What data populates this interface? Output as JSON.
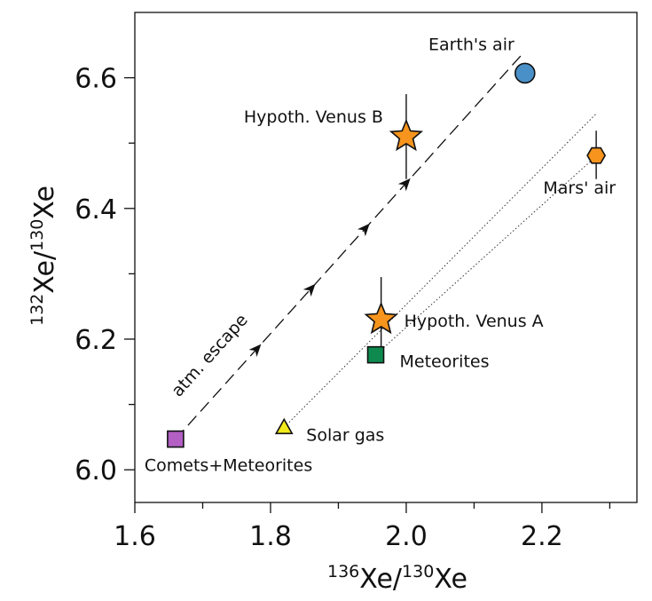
{
  "chart_data": {
    "type": "scatter",
    "xlabel": {
      "sup1": "136",
      "base1": "Xe/",
      "sup2": "130",
      "base2": "Xe"
    },
    "ylabel": {
      "sup1": "132",
      "base1": "Xe/",
      "sup2": "130",
      "base2": "Xe"
    },
    "xlim": [
      1.6,
      2.34
    ],
    "ylim": [
      5.95,
      6.7
    ],
    "x_ticks": [
      1.6,
      1.8,
      2.0,
      2.2
    ],
    "x_tick_labels": [
      "1.6",
      "1.8",
      "2.0",
      "2.2"
    ],
    "x_minor_ticks": [
      1.7,
      1.9,
      2.1,
      2.3
    ],
    "y_ticks": [
      6.0,
      6.2,
      6.4,
      6.6
    ],
    "y_tick_labels": [
      "6.0",
      "6.2",
      "6.4",
      "6.6"
    ],
    "y_minor_ticks": [
      6.1,
      6.3,
      6.5
    ],
    "grid": false,
    "points": [
      {
        "label": "Earth's air",
        "x": 2.175,
        "y": 6.607,
        "marker": "circle",
        "color": "#4a90c8"
      },
      {
        "label": "Hypoth. Venus B",
        "x": 2.0,
        "y": 6.51,
        "marker": "star",
        "color": "#f7941d",
        "y_err": [
          6.445,
          6.575
        ]
      },
      {
        "label": "Mars' air",
        "x": 2.28,
        "y": 6.481,
        "marker": "hexagon",
        "color": "#f7941d",
        "y_err": [
          6.445,
          6.519
        ]
      },
      {
        "label": "Hypoth. Venus A",
        "x": 1.963,
        "y": 6.23,
        "marker": "star",
        "color": "#f7941d",
        "y_err": [
          6.165,
          6.295
        ]
      },
      {
        "label": "Meteorites",
        "x": 1.955,
        "y": 6.176,
        "marker": "square",
        "color": "#0e8a4f"
      },
      {
        "label": "Solar gas",
        "x": 1.82,
        "y": 6.065,
        "marker": "triangle",
        "color": "#f2ea1a"
      },
      {
        "label": "Comets+Meteorites",
        "x": 1.66,
        "y": 6.047,
        "marker": "square",
        "color": "#b35fc4"
      }
    ],
    "escape_line": {
      "label": "atm. escape",
      "from": [
        1.66,
        6.047
      ],
      "to": [
        2.17,
        6.635
      ],
      "arrows_at_x": [
        1.78,
        1.86,
        1.94,
        2.0
      ]
    },
    "dotted_lines": [
      {
        "from": [
          1.82,
          6.065
        ],
        "to": [
          2.28,
          6.545
        ]
      },
      {
        "from": [
          1.955,
          6.176
        ],
        "to": [
          2.28,
          6.48
        ]
      }
    ]
  }
}
